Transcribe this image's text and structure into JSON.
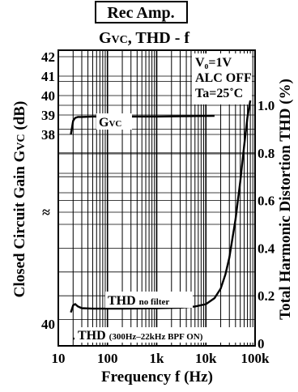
{
  "chart_data": {
    "type": "line",
    "header_box": "Rec Amp.",
    "title": {
      "pre": "G",
      "sub": "VC",
      "post": ", THD - f"
    },
    "xlabel": "Frequency f (Hz)",
    "ylabel_left": {
      "pre": "Closed Circuit Gain G",
      "sub": "VC",
      "post": " (dB)"
    },
    "ylabel_right": "Total Harmonic Distortion THD (%)",
    "x_scale": "log",
    "xlim": [
      10,
      100000
    ],
    "x_ticks": [
      {
        "value": 10,
        "label": "10"
      },
      {
        "value": 100,
        "label": "100"
      },
      {
        "value": 1000,
        "label": "1k"
      },
      {
        "value": 10000,
        "label": "10k"
      },
      {
        "value": 100000,
        "label": "100k"
      }
    ],
    "left_axis": {
      "upper_ticks": [
        "42",
        "41",
        "40",
        "39",
        "38"
      ],
      "upper_values": [
        42,
        41,
        40,
        39,
        38
      ],
      "break_symbol": "≈",
      "lower_tick": "40",
      "lower_value": 40
    },
    "right_axis": {
      "ylim": [
        0,
        1.2
      ],
      "ticks": [
        "0",
        "0.2",
        "0.4",
        "0.6",
        "0.8",
        "1.0"
      ],
      "values": [
        0,
        0.2,
        0.4,
        0.6,
        0.8,
        1.0
      ]
    },
    "conditions": [
      "V₀=1V",
      "ALC OFF",
      "Ta=25˚C"
    ],
    "grid": true,
    "series": [
      {
        "name": {
          "pre": "G",
          "sub": "VC"
        },
        "axis": "left-upper",
        "x": [
          18,
          20,
          22,
          25,
          30,
          50,
          100,
          1000,
          10000,
          15000
        ],
        "y": [
          38.0,
          38.7,
          38.85,
          38.9,
          38.9,
          38.92,
          38.92,
          38.92,
          38.95,
          38.96
        ]
      },
      {
        "name": {
          "pre": "THD ",
          "sub": "no filter"
        },
        "axis": "right",
        "x": [
          18,
          20,
          22,
          25,
          30,
          50,
          100,
          200,
          500,
          1000,
          3000,
          6000,
          10000,
          15000,
          20000,
          25000,
          30000,
          40000,
          50000,
          60000,
          70000,
          80000
        ],
        "y": [
          0.13,
          0.16,
          0.165,
          0.155,
          0.148,
          0.146,
          0.146,
          0.146,
          0.147,
          0.148,
          0.15,
          0.155,
          0.165,
          0.19,
          0.23,
          0.29,
          0.36,
          0.52,
          0.68,
          0.83,
          0.95,
          1.02
        ]
      },
      {
        "name": {
          "pre": "THD ",
          "sub": "(300Hz–22kHz BPF ON)"
        },
        "axis": "right",
        "x": [
          20,
          100000
        ],
        "y": [
          0.02,
          0.02
        ]
      }
    ]
  }
}
